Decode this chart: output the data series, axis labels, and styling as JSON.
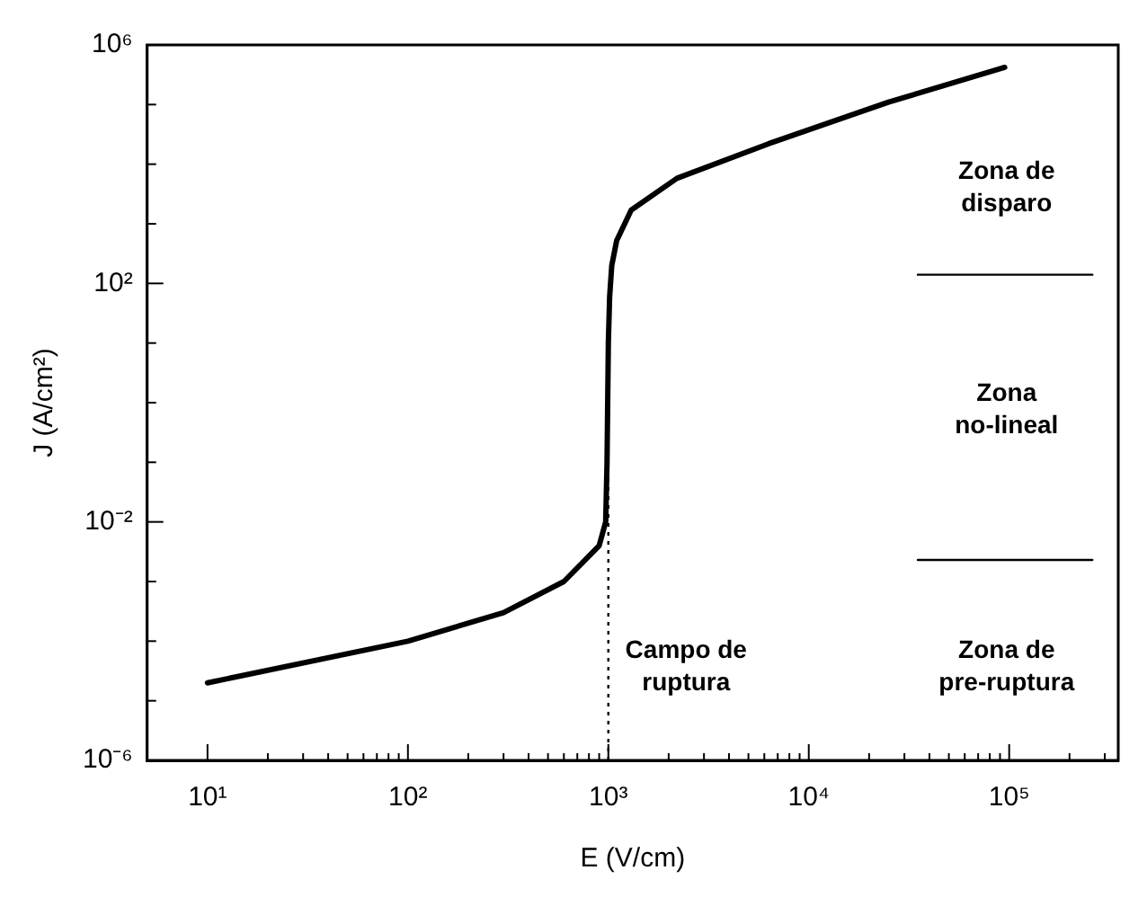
{
  "chart_data": {
    "type": "line",
    "xlabel": "E (V/cm)",
    "ylabel": "J (A/cm²)",
    "log": "xy",
    "marker": "none",
    "xlim": [
      5,
      350000
    ],
    "ylim": [
      1e-06,
      1000000
    ],
    "xticks": [
      {
        "value": 10,
        "label": "10¹"
      },
      {
        "value": 20,
        "label": null
      },
      {
        "value": 30,
        "label": null
      },
      {
        "value": 40,
        "label": null
      },
      {
        "value": 50,
        "label": null
      },
      {
        "value": 60,
        "label": null
      },
      {
        "value": 70,
        "label": null
      },
      {
        "value": 80,
        "label": null
      },
      {
        "value": 90,
        "label": null
      },
      {
        "value": 100,
        "label": "10²"
      },
      {
        "value": 200,
        "label": null
      },
      {
        "value": 300,
        "label": null
      },
      {
        "value": 400,
        "label": null
      },
      {
        "value": 500,
        "label": null
      },
      {
        "value": 600,
        "label": null
      },
      {
        "value": 700,
        "label": null
      },
      {
        "value": 800,
        "label": null
      },
      {
        "value": 900,
        "label": null
      },
      {
        "value": 1000,
        "label": "10³"
      },
      {
        "value": 2000,
        "label": null
      },
      {
        "value": 3000,
        "label": null
      },
      {
        "value": 4000,
        "label": null
      },
      {
        "value": 5000,
        "label": null
      },
      {
        "value": 6000,
        "label": null
      },
      {
        "value": 7000,
        "label": null
      },
      {
        "value": 8000,
        "label": null
      },
      {
        "value": 9000,
        "label": null
      },
      {
        "value": 10000,
        "label": "10⁴"
      },
      {
        "value": 20000,
        "label": null
      },
      {
        "value": 30000,
        "label": null
      },
      {
        "value": 40000,
        "label": null
      },
      {
        "value": 50000,
        "label": null
      },
      {
        "value": 60000,
        "label": null
      },
      {
        "value": 70000,
        "label": null
      },
      {
        "value": 80000,
        "label": null
      },
      {
        "value": 90000,
        "label": null
      },
      {
        "value": 100000,
        "label": "10⁵"
      },
      {
        "value": 200000,
        "label": null
      },
      {
        "value": 300000,
        "label": null
      }
    ],
    "yticks": [
      {
        "value": 1e-06,
        "label": "10⁻⁶"
      },
      {
        "value": 1e-05,
        "label": null
      },
      {
        "value": 0.0001,
        "label": null
      },
      {
        "value": 0.001,
        "label": null
      },
      {
        "value": 0.01,
        "label": "10⁻²"
      },
      {
        "value": 0.1,
        "label": null
      },
      {
        "value": 1,
        "label": null
      },
      {
        "value": 10,
        "label": null
      },
      {
        "value": 100,
        "label": "10²"
      },
      {
        "value": 1000,
        "label": null
      },
      {
        "value": 10000,
        "label": null
      },
      {
        "value": 100000,
        "label": null
      },
      {
        "value": 1000000,
        "label": "10⁶"
      }
    ],
    "ref_lines": [
      {
        "axis": "x",
        "value": 1000,
        "line_style": "dotted",
        "color": "#000000"
      }
    ],
    "series": [
      {
        "color": "#000000",
        "line_style": "solid",
        "x": [
          10,
          100,
          300,
          600,
          900,
          970,
          985,
          1000,
          1015,
          1040,
          1100,
          1300,
          2200,
          6300,
          25000,
          95000
        ],
        "values": [
          2e-05,
          0.0001,
          0.0003,
          0.001,
          0.004,
          0.01,
          0.1,
          10,
          60,
          200,
          520,
          1700,
          5800,
          22000,
          110000,
          420000
        ]
      },
      {
        "color": "#000000",
        "line_style": "solid",
        "x": [
          35000,
          260000
        ],
        "values": [
          140,
          140
        ]
      },
      {
        "color": "#000000",
        "line_style": "solid",
        "x": [
          35000,
          260000
        ],
        "values": [
          0.0023,
          0.0023
        ]
      }
    ],
    "annotations": [
      "Zona de\ndisparo",
      "Zona\nno-lineal",
      "Zona de\npre-ruptura",
      "Campo de\nruptura"
    ]
  }
}
